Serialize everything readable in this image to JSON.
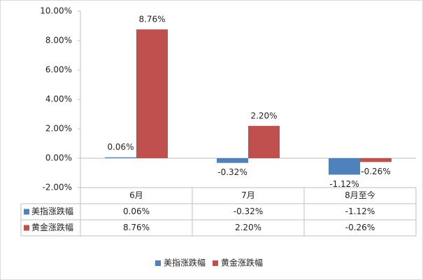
{
  "chart_data": {
    "type": "bar",
    "categories": [
      "6月",
      "7月",
      "8月至今"
    ],
    "series": [
      {
        "name": "美指涨跌幅",
        "color": "#4f81bd",
        "values": [
          0.06,
          -0.32,
          -1.12
        ],
        "value_labels": [
          "0.06%",
          "-0.32%",
          "-1.12%"
        ]
      },
      {
        "name": "黄金涨跌幅",
        "color": "#c0504d",
        "values": [
          8.76,
          2.2,
          -0.26
        ],
        "value_labels": [
          "8.76%",
          "2.20%",
          "-0.26%"
        ]
      }
    ],
    "ylim": [
      -2,
      10
    ],
    "yticks": [
      {
        "value": -2,
        "label": "-2.00%"
      },
      {
        "value": 0,
        "label": "0.00%"
      },
      {
        "value": 2,
        "label": "2.00%"
      },
      {
        "value": 4,
        "label": "4.00%"
      },
      {
        "value": 6,
        "label": "6.00%"
      },
      {
        "value": 8,
        "label": "8.00%"
      },
      {
        "value": 10,
        "label": "10.00%"
      }
    ],
    "grid": false,
    "legend": "bottom"
  }
}
